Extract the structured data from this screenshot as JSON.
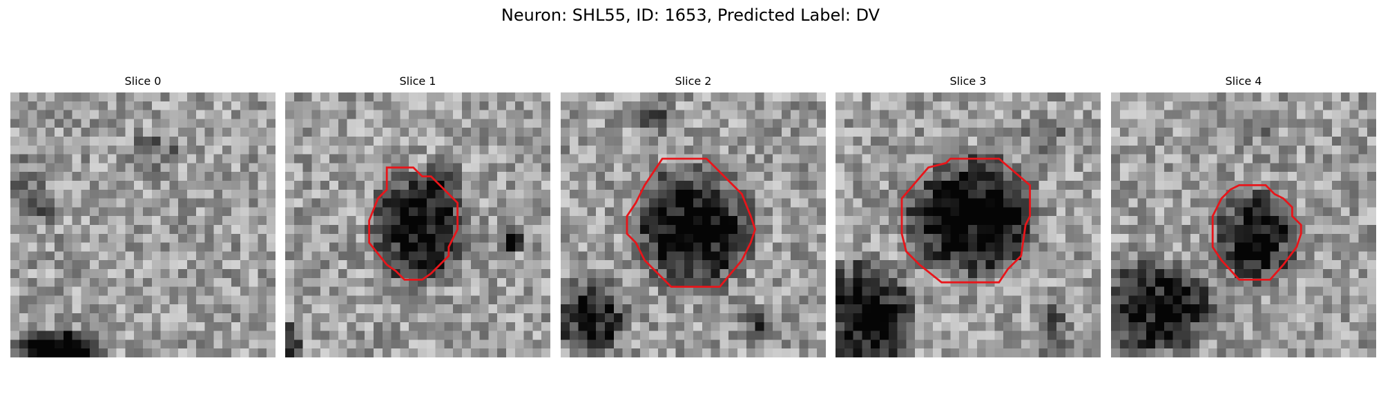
{
  "figure": {
    "title": "Neuron: SHL55, ID: 1653, Predicted Label: DV"
  },
  "panels": [
    {
      "title": "Slice 0",
      "contour": false
    },
    {
      "title": "Slice 1",
      "contour": true
    },
    {
      "title": "Slice 2",
      "contour": true
    },
    {
      "title": "Slice 3",
      "contour": true
    },
    {
      "title": "Slice 4",
      "contour": true
    }
  ],
  "colors": {
    "contour": "#e8151a",
    "colormap": "grayscale"
  }
}
